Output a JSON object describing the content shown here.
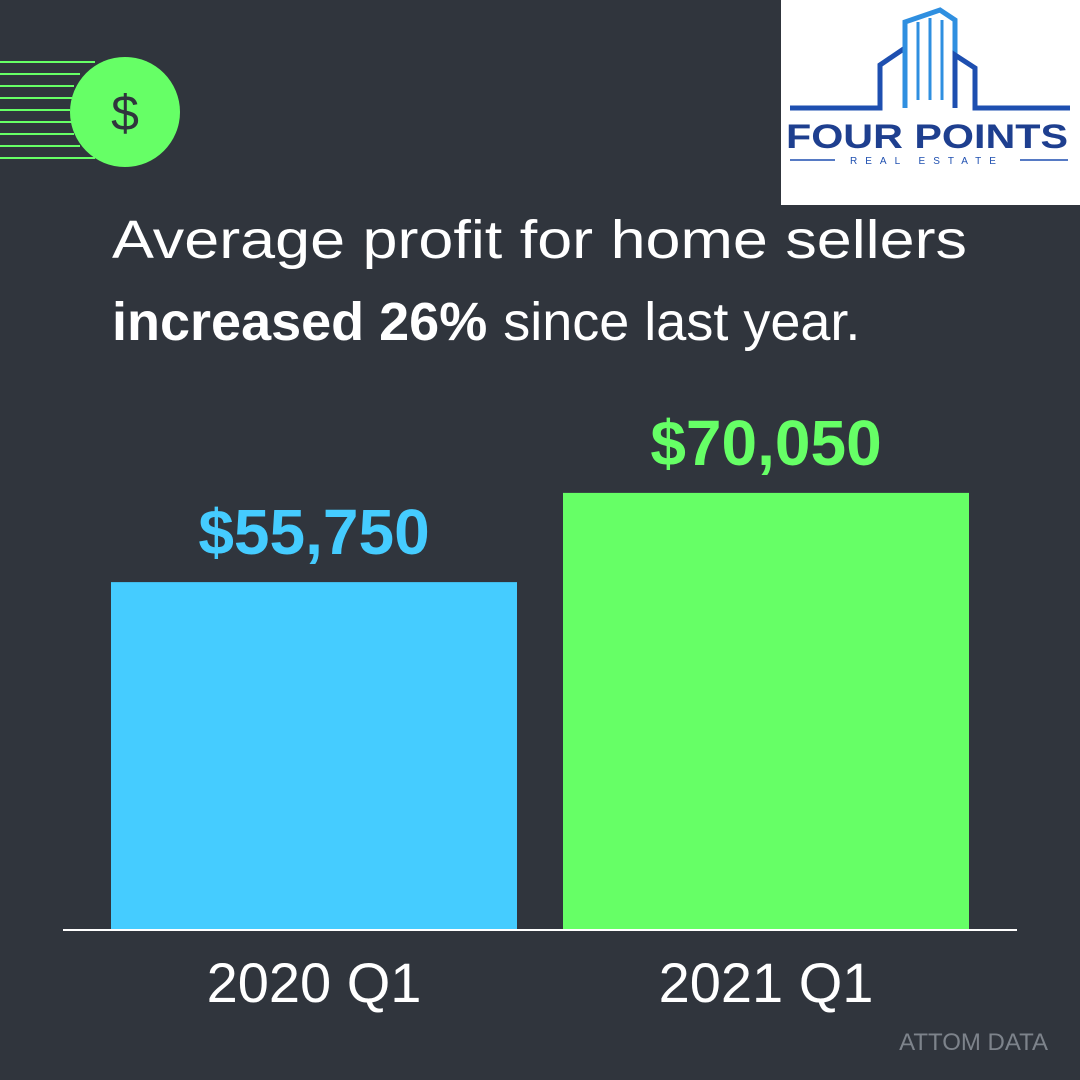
{
  "chart_data": {
    "type": "bar",
    "title_line1": "Average profit for home sellers",
    "title_emphasis": "increased 26%",
    "title_rest": "since last year.",
    "categories": [
      "2020 Q1",
      "2021 Q1"
    ],
    "values": [
      55750,
      70050
    ],
    "value_labels": [
      "$55,750",
      "$70,050"
    ],
    "colors": [
      "#45ccff",
      "#66ff66"
    ],
    "ylim": [
      0,
      80000
    ],
    "icon_symbol": "$",
    "logo_name": "FOUR POINTS",
    "logo_tagline": "REAL ESTATE",
    "source": "ATTOM DATA"
  }
}
